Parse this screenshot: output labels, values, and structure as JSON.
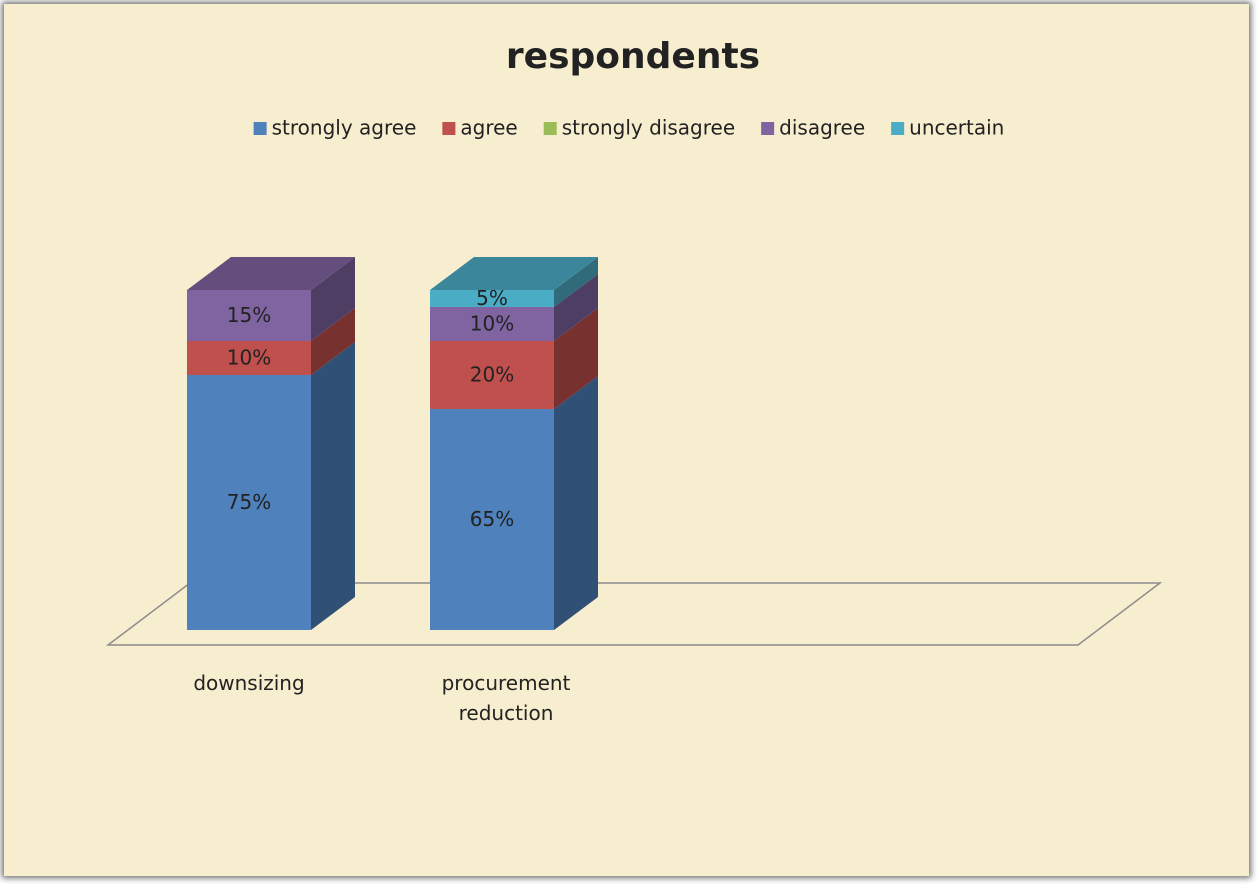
{
  "chart_data": {
    "type": "bar3d-stacked",
    "title": "respondents",
    "categories": [
      "downsizing",
      "procurement reduction"
    ],
    "series": [
      {
        "name": "strongly agree",
        "color": "#4f81bd",
        "values": [
          75,
          65
        ],
        "value_labels": [
          "75%",
          "65%"
        ]
      },
      {
        "name": "agree",
        "color": "#c0504d",
        "values": [
          10,
          20
        ],
        "value_labels": [
          "10%",
          "20%"
        ]
      },
      {
        "name": "strongly disagree",
        "color": "#9bbb59",
        "values": [
          null,
          null
        ],
        "value_labels": [
          null,
          null
        ]
      },
      {
        "name": "disagree",
        "color": "#8064a2",
        "values": [
          15,
          10
        ],
        "value_labels": [
          "15%",
          "10%"
        ]
      },
      {
        "name": "uncertain",
        "color": "#4bacc6",
        "values": [
          null,
          5
        ],
        "value_labels": [
          null,
          "5%"
        ]
      }
    ],
    "legend": "top"
  }
}
